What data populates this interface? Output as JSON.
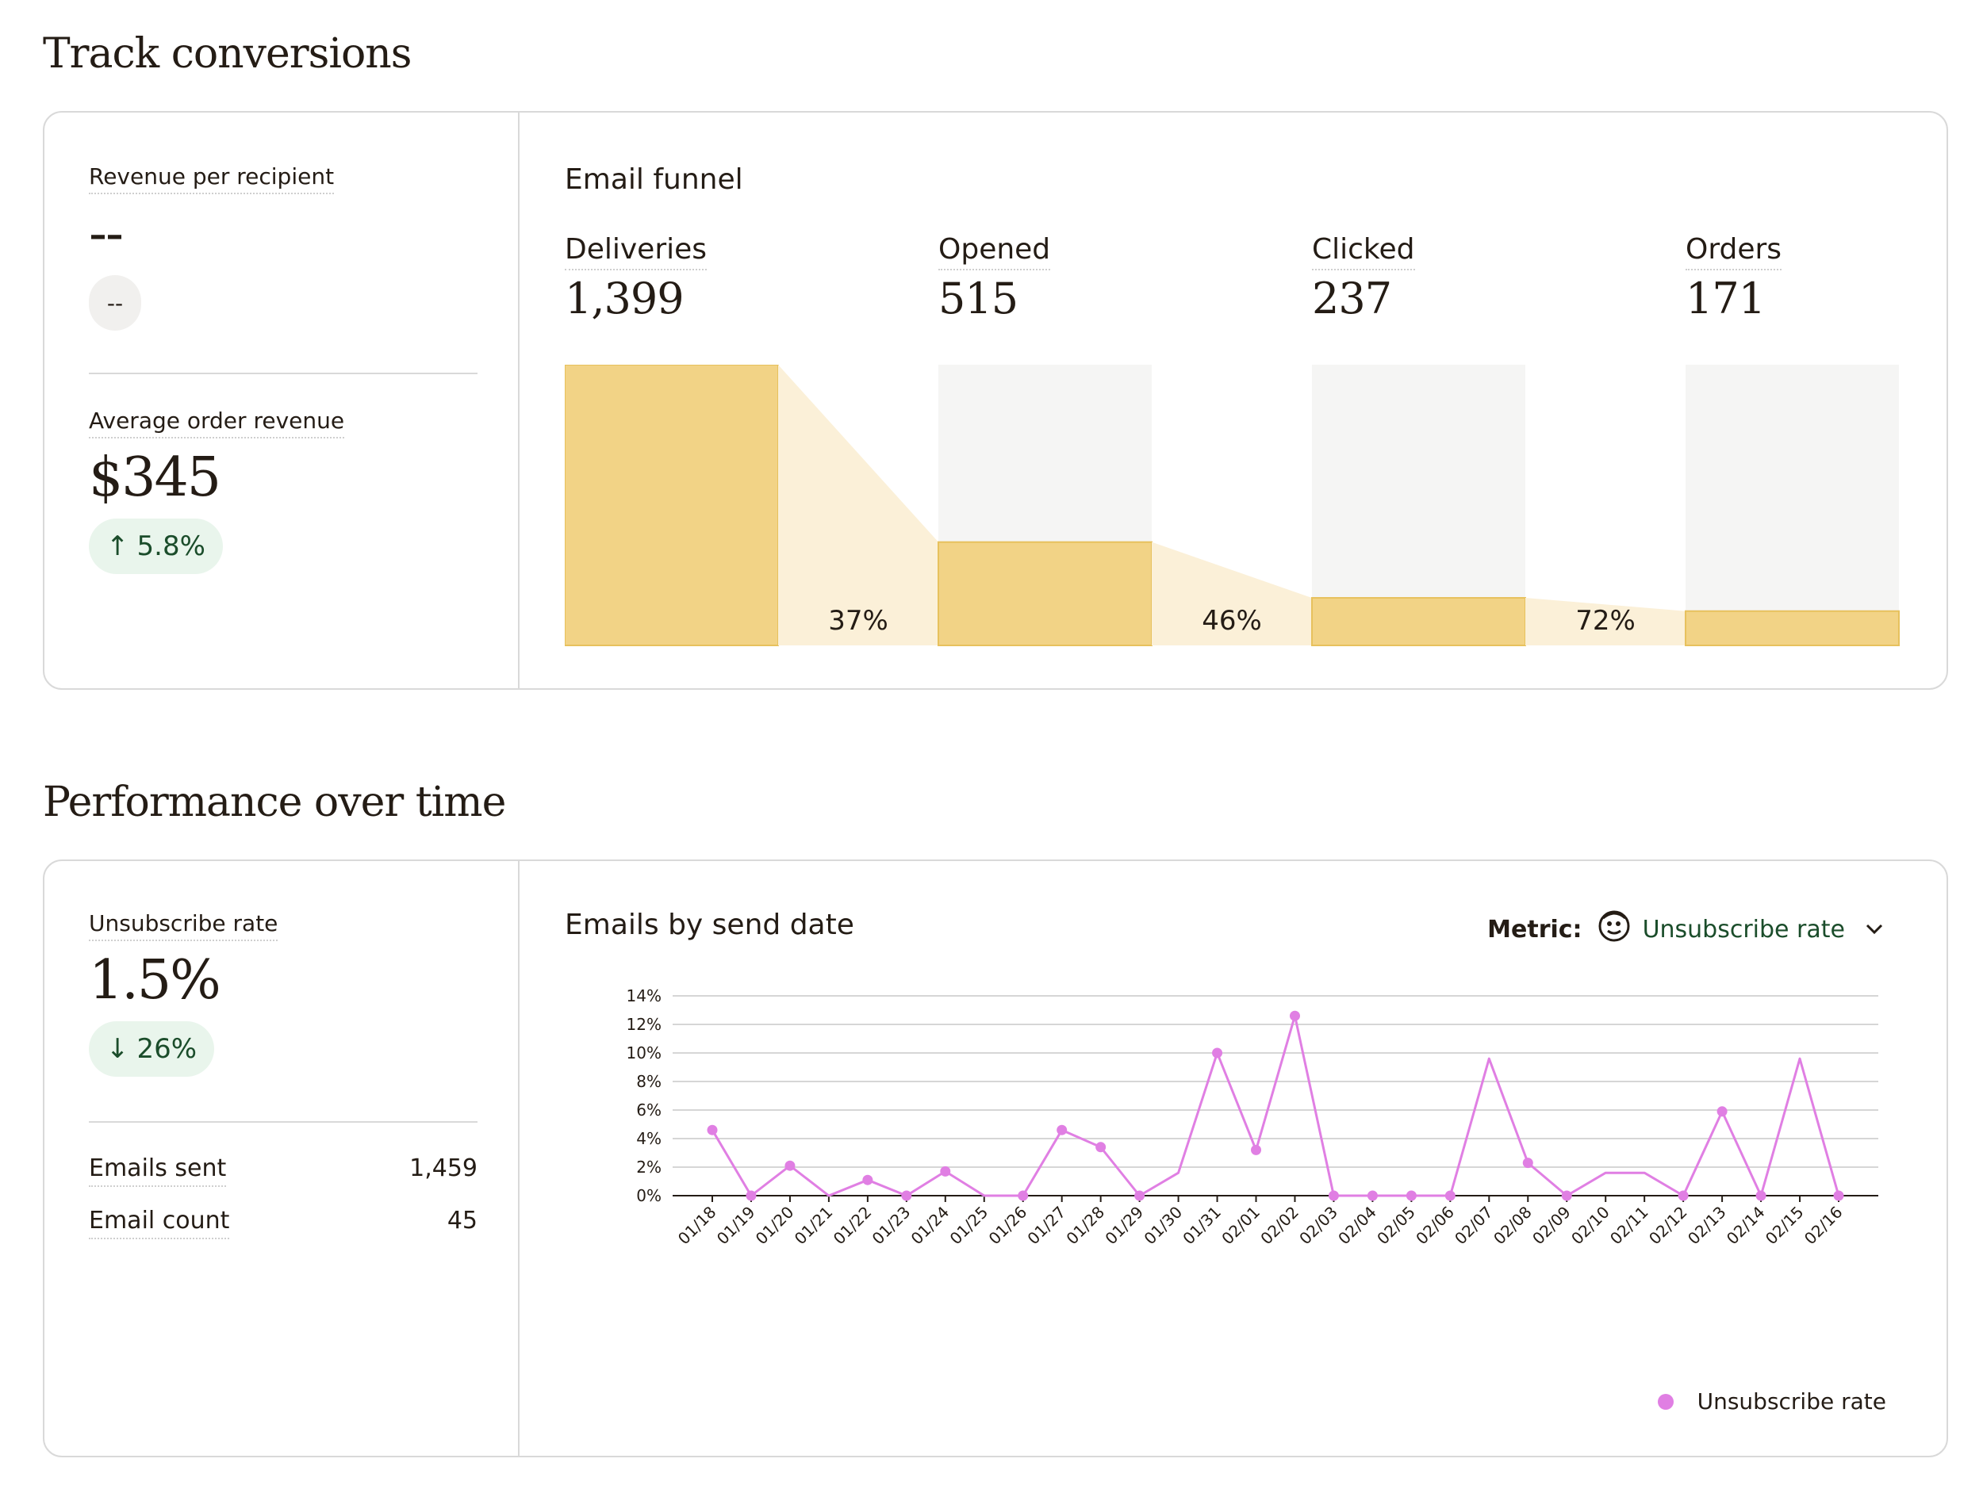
{
  "sections": {
    "conversions_title": "Track conversions",
    "performance_title": "Performance over time"
  },
  "conversions": {
    "revenue_per_recipient": {
      "label": "Revenue per recipient",
      "value": "--",
      "change": "--"
    },
    "average_order_revenue": {
      "label": "Average order revenue",
      "value": "$345",
      "change": "5.8%",
      "direction": "up"
    }
  },
  "funnel": {
    "title": "Email funnel",
    "stages": [
      {
        "label": "Deliveries",
        "value": "1,399",
        "count": 1399
      },
      {
        "label": "Opened",
        "value": "515",
        "count": 515
      },
      {
        "label": "Clicked",
        "value": "237",
        "count": 237
      },
      {
        "label": "Orders",
        "value": "171",
        "count": 171
      }
    ],
    "conversion_rates": [
      "37%",
      "46%",
      "72%"
    ],
    "colors": {
      "bar": "#f2d386",
      "bar_edge": "#e7c15d",
      "connector": "#fbf0d8",
      "track": "#f5f5f4"
    }
  },
  "performance": {
    "unsubscribe_rate": {
      "label": "Unsubscribe rate",
      "value": "1.5%",
      "change": "26%",
      "direction": "down"
    },
    "stats": [
      {
        "label": "Emails sent",
        "value": "1,459"
      },
      {
        "label": "Email count",
        "value": "45"
      }
    ]
  },
  "chart_panel": {
    "title": "Emails by send date",
    "metric_label": "Metric:",
    "metric_value": "Unsubscribe rate",
    "icon": "mailchimp-logo-icon"
  },
  "chart_data": {
    "type": "line",
    "title": "Emails by send date",
    "xlabel": "",
    "ylabel": "",
    "ylim": [
      0,
      14
    ],
    "yticks": [
      "0%",
      "2%",
      "4%",
      "6%",
      "8%",
      "10%",
      "12%",
      "14%"
    ],
    "ytick_values": [
      0,
      2,
      4,
      6,
      8,
      10,
      12,
      14
    ],
    "grid": true,
    "legend": "bottom-right",
    "color": "#e07fe3",
    "x": [
      "01/18",
      "01/19",
      "01/20",
      "01/21",
      "01/22",
      "01/23",
      "01/24",
      "01/25",
      "01/26",
      "01/27",
      "01/28",
      "01/29",
      "01/30",
      "01/31",
      "02/01",
      "02/02",
      "02/03",
      "02/04",
      "02/05",
      "02/06",
      "02/07",
      "02/08",
      "02/09",
      "02/10",
      "02/11",
      "02/12",
      "02/13",
      "02/14",
      "02/15",
      "02/16"
    ],
    "series": [
      {
        "name": "Unsubscribe rate",
        "values": [
          4.6,
          0,
          2.1,
          0,
          1.1,
          0,
          1.7,
          0,
          0,
          4.6,
          3.4,
          0,
          1.6,
          10.0,
          3.2,
          12.6,
          0,
          0,
          0,
          0,
          9.6,
          2.3,
          0,
          1.6,
          1.6,
          0,
          5.9,
          0,
          9.6,
          0
        ],
        "markers": [
          true,
          true,
          true,
          false,
          true,
          true,
          true,
          false,
          true,
          true,
          true,
          true,
          false,
          true,
          true,
          true,
          true,
          true,
          true,
          true,
          false,
          true,
          true,
          false,
          false,
          true,
          true,
          true,
          false,
          true
        ]
      }
    ]
  }
}
